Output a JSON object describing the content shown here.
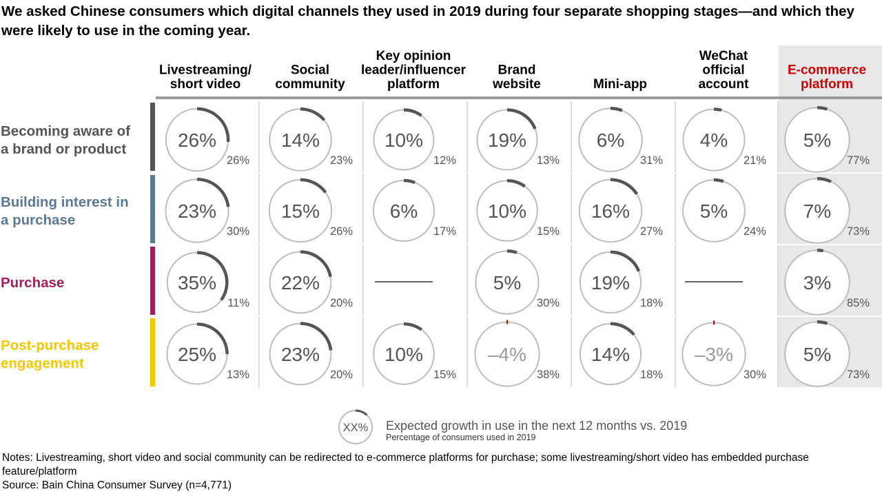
{
  "title": "We asked Chinese consumers which digital channels they used in 2019 during four separate shopping stages—and which they were likely to use in the coming year.",
  "colors": {
    "stage_aware": "#555555",
    "stage_interest": "#5b7894",
    "stage_purchase": "#a0205a",
    "stage_post": "#f5c800",
    "highlight_column": "#cc0000",
    "arc": "#555555",
    "negative_arc": "#cc0000",
    "circle": "#bdbdbd",
    "ecommerce_bg": "#e8e8e8"
  },
  "chart_data": {
    "type": "table",
    "subtype": "bubble-matrix with growth arcs",
    "columns": [
      "Livestreaming/ short video",
      "Social community",
      "Key opinion leader/influencer platform",
      "Brand website",
      "Mini-app",
      "WeChat official account",
      "E-commerce platform"
    ],
    "rows": [
      "Becoming aware of a brand or product",
      "Building interest in a purchase",
      "Purchase",
      "Post-purchase engagement"
    ],
    "highlighted_column": "E-commerce platform",
    "growth": [
      [
        "26%",
        "14%",
        "10%",
        "19%",
        "6%",
        "4%",
        "5%"
      ],
      [
        "23%",
        "15%",
        "6%",
        "10%",
        "16%",
        "5%",
        "7%"
      ],
      [
        "35%",
        "22%",
        null,
        "5%",
        "19%",
        null,
        "3%"
      ],
      [
        "25%",
        "23%",
        "10%",
        "–4%",
        "14%",
        "–3%",
        "5%"
      ]
    ],
    "growth_values": [
      [
        26,
        14,
        10,
        19,
        6,
        4,
        5
      ],
      [
        23,
        15,
        6,
        10,
        16,
        5,
        7
      ],
      [
        35,
        22,
        null,
        5,
        19,
        null,
        3
      ],
      [
        25,
        23,
        10,
        -4,
        14,
        -3,
        5
      ]
    ],
    "used_2019": [
      [
        "26%",
        "23%",
        "12%",
        "13%",
        "31%",
        "21%",
        "77%"
      ],
      [
        "30%",
        "26%",
        "17%",
        "15%",
        "27%",
        "24%",
        "73%"
      ],
      [
        "11%",
        "20%",
        null,
        "30%",
        "18%",
        null,
        "85%"
      ],
      [
        "13%",
        "20%",
        "15%",
        "38%",
        "18%",
        "30%",
        "73%"
      ]
    ],
    "used_2019_values": [
      [
        26,
        23,
        12,
        13,
        31,
        21,
        77
      ],
      [
        30,
        26,
        17,
        15,
        27,
        24,
        73
      ],
      [
        11,
        20,
        null,
        30,
        18,
        null,
        85
      ],
      [
        13,
        20,
        15,
        38,
        18,
        30,
        73
      ]
    ],
    "legend": {
      "symbol": "XX%",
      "growth_label": "Expected growth in use in the next 12 months vs. 2019",
      "used_label": "Percentage of consumers used in 2019"
    }
  },
  "notes": {
    "line1": "Notes: Livestreaming, short video and social community can be redirected to e-commerce platforms for purchase; some livestreaming/short video has embedded purchase feature/platform",
    "line2": "Source: Bain China Consumer Survey (n=4,771)"
  }
}
